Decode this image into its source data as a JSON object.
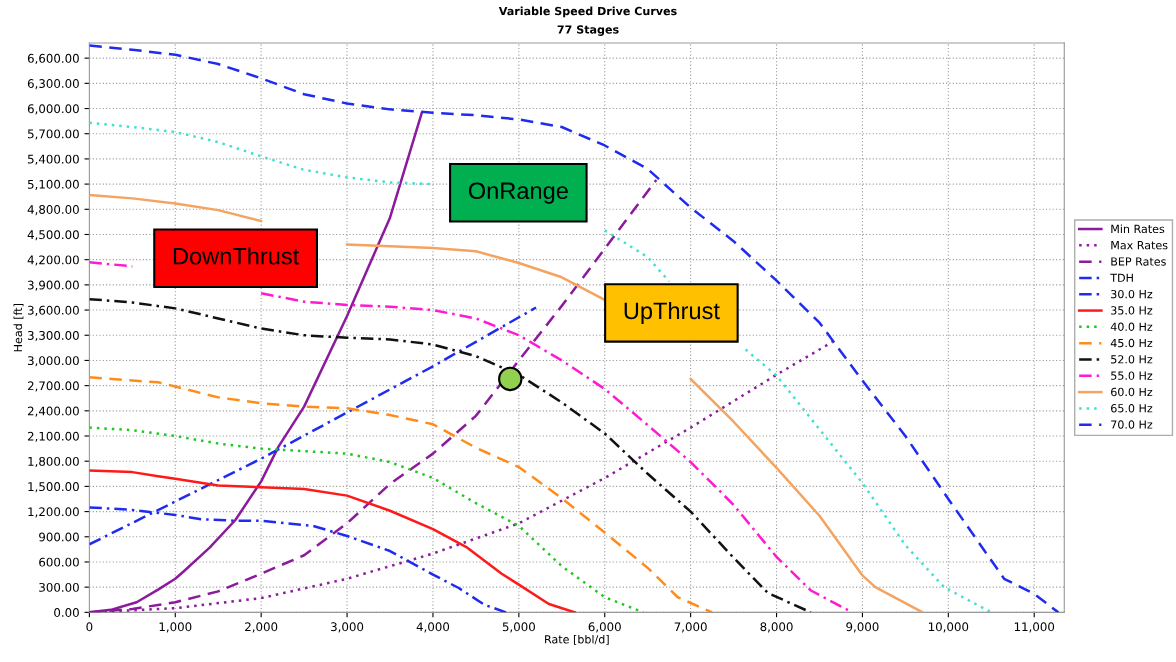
{
  "chart_data": {
    "type": "line",
    "title": "Variable Speed Drive Curves",
    "subtitle": "77 Stages",
    "xlabel": "Rate [bbl/d]",
    "ylabel": "Head [ft]",
    "xlim": [
      0,
      11350
    ],
    "ylim": [
      0,
      6780
    ],
    "xticks": [
      0,
      {
        "value": 1000,
        "label": "1,000"
      },
      {
        "value": 2000,
        "label": "2,000"
      },
      {
        "value": 3000,
        "label": "3,000"
      },
      {
        "value": 4000,
        "label": "4,000"
      },
      {
        "value": 5000,
        "label": "5,000"
      },
      {
        "value": 6000,
        "label": "6,000"
      },
      {
        "value": 7000,
        "label": "7,000"
      },
      {
        "value": 8000,
        "label": "8,000"
      },
      {
        "value": 9000,
        "label": "9,000"
      },
      {
        "value": 10000,
        "label": "10,000"
      },
      {
        "value": 11000,
        "label": "11,000"
      }
    ],
    "yticks": [
      {
        "value": 0,
        "label": "0.00"
      },
      {
        "value": 300,
        "label": "300.00"
      },
      {
        "value": 600,
        "label": "600.00"
      },
      {
        "value": 900,
        "label": "900.00"
      },
      {
        "value": 1200,
        "label": "1,200.00"
      },
      {
        "value": 1500,
        "label": "1,500.00"
      },
      {
        "value": 1800,
        "label": "1,800.00"
      },
      {
        "value": 2100,
        "label": "2,100.00"
      },
      {
        "value": 2400,
        "label": "2,400.00"
      },
      {
        "value": 2700,
        "label": "2,700.00"
      },
      {
        "value": 3000,
        "label": "3,000.00"
      },
      {
        "value": 3300,
        "label": "3,300.00"
      },
      {
        "value": 3600,
        "label": "3,600.00"
      },
      {
        "value": 3900,
        "label": "3,900.00"
      },
      {
        "value": 4200,
        "label": "4,200.00"
      },
      {
        "value": 4500,
        "label": "4,500.00"
      },
      {
        "value": 4800,
        "label": "4,800.00"
      },
      {
        "value": 5100,
        "label": "5,100.00"
      },
      {
        "value": 5400,
        "label": "5,400.00"
      },
      {
        "value": 5700,
        "label": "5,700.00"
      },
      {
        "value": 6000,
        "label": "6,000.00"
      },
      {
        "value": 6300,
        "label": "6,300.00"
      },
      {
        "value": 6600,
        "label": "6,600.00"
      }
    ],
    "grid": true,
    "legend": "right",
    "marker": "none",
    "annotations": [
      "DownThrust",
      "OnRange",
      "UpThrust"
    ],
    "series": [
      {
        "name": "Min Rates",
        "color": "#8b1a9c",
        "line_style": "solid",
        "x": [
          0,
          250,
          550,
          800,
          1000,
          1100,
          1400,
          1700,
          2000,
          2200,
          2500,
          3000,
          3500,
          3870
        ],
        "values": [
          0,
          30,
          120,
          270,
          400,
          490,
          770,
          1100,
          1560,
          1970,
          2450,
          3530,
          4700,
          5950
        ]
      },
      {
        "name": "Max Rates",
        "color": "#8b1a9c",
        "line_style": "dotted",
        "x": [
          0,
          1000,
          2000,
          3000,
          4000,
          5000,
          6000,
          7000,
          8000,
          8650
        ],
        "values": [
          0,
          50,
          170,
          400,
          700,
          1060,
          1600,
          2200,
          2830,
          3220
        ]
      },
      {
        "name": "BEP Rates",
        "color": "#8b1a9c",
        "line_style": "dashed",
        "x": [
          0,
          500,
          1000,
          1500,
          2000,
          2500,
          3000,
          3500,
          4000,
          4500,
          5000,
          5500,
          6000,
          6600
        ],
        "values": [
          0,
          40,
          120,
          250,
          460,
          680,
          1060,
          1530,
          1890,
          2340,
          3000,
          3650,
          4330,
          5150
        ]
      },
      {
        "name": "TDH",
        "color": "#1f2cf0",
        "line_style": "dashdot",
        "x": [
          0,
          2000,
          4000,
          5200
        ],
        "values": [
          810,
          1830,
          2930,
          3630
        ]
      },
      {
        "name": "30.0 Hz",
        "color": "#1f2cf0",
        "line_style": "dashdot",
        "x": [
          0,
          500,
          1000,
          1300,
          1700,
          2000,
          2600,
          3000,
          3500,
          4000,
          4300,
          4600,
          4850
        ],
        "values": [
          1250,
          1220,
          1160,
          1110,
          1090,
          1090,
          1030,
          910,
          730,
          450,
          290,
          90,
          0
        ]
      },
      {
        "name": "35.0 Hz",
        "color": "#ff1a1a",
        "line_style": "solid",
        "x": [
          0,
          500,
          800,
          1000,
          1500,
          2000,
          2500,
          3000,
          3500,
          4000,
          4400,
          4800,
          5000,
          5350,
          5650
        ],
        "values": [
          1690,
          1670,
          1620,
          1590,
          1510,
          1490,
          1470,
          1390,
          1210,
          990,
          770,
          460,
          330,
          100,
          0
        ]
      },
      {
        "name": "40.0 Hz",
        "color": "#1fc81f",
        "line_style": "dotted",
        "x": [
          0,
          500,
          1000,
          1500,
          2000,
          2500,
          3000,
          3500,
          4000,
          4500,
          5000,
          5500,
          6000,
          6450
        ],
        "values": [
          2200,
          2170,
          2100,
          2010,
          1950,
          1920,
          1890,
          1790,
          1600,
          1300,
          1030,
          550,
          180,
          0
        ]
      },
      {
        "name": "45.0 Hz",
        "color": "#ff8c1a",
        "line_style": "dashed",
        "x": [
          0,
          500,
          800,
          1000,
          1500,
          2000,
          2500,
          3000,
          3500,
          4000,
          4500,
          5000,
          5500,
          6000,
          6500,
          6850,
          7250
        ],
        "values": [
          2800,
          2760,
          2740,
          2690,
          2560,
          2490,
          2450,
          2430,
          2350,
          2240,
          1960,
          1730,
          1360,
          950,
          530,
          180,
          0
        ]
      },
      {
        "name": "52.0 Hz",
        "color": "#111111",
        "line_style": "dashdot",
        "x": [
          0,
          500,
          1000,
          1500,
          2000,
          2500,
          3000,
          3500,
          4000,
          4500,
          5000,
          5500,
          6000,
          6500,
          7000,
          7500,
          7900,
          8400
        ],
        "values": [
          3730,
          3690,
          3620,
          3500,
          3380,
          3300,
          3270,
          3250,
          3190,
          3050,
          2830,
          2500,
          2130,
          1650,
          1200,
          650,
          230,
          0
        ]
      },
      {
        "name": "55.0 Hz",
        "color": "#ff1ad1",
        "line_style": "dashdot",
        "x": [
          0,
          500,
          1000,
          1500,
          2000,
          2500,
          3000,
          3500,
          4000,
          4500,
          5000,
          5500,
          6000,
          6500,
          7000,
          7500,
          8000,
          8400,
          8880
        ],
        "values": [
          4170,
          4120,
          null,
          null,
          3800,
          3700,
          3660,
          3640,
          3600,
          3500,
          3300,
          3000,
          2660,
          2230,
          1790,
          1280,
          660,
          260,
          0
        ]
      },
      {
        "name": "60.0 Hz",
        "color": "#f4a460",
        "line_style": "solid",
        "x": [
          0,
          500,
          1000,
          1500,
          2000,
          2500,
          3000,
          3500,
          4000,
          4500,
          5000,
          5500,
          6000,
          6500,
          7000,
          7500,
          8000,
          8500,
          9000,
          9150,
          9700
        ],
        "values": [
          4970,
          4930,
          4870,
          4790,
          4660,
          null,
          4380,
          4360,
          4340,
          4300,
          4160,
          3990,
          3720,
          null,
          2780,
          2270,
          1720,
          1150,
          440,
          300,
          0
        ]
      },
      {
        "name": "65.0 Hz",
        "color": "#40e0d0",
        "line_style": "dotted",
        "x": [
          0,
          500,
          1000,
          1500,
          2000,
          2500,
          3000,
          3500,
          4000,
          4500,
          5000,
          5500,
          6000,
          6500,
          6750,
          7200,
          7640,
          8000,
          8500,
          9000,
          9500,
          9950,
          10500
        ],
        "values": [
          5830,
          5780,
          5720,
          5600,
          5430,
          5270,
          5180,
          5120,
          5100,
          null,
          null,
          null,
          4550,
          4230,
          3940,
          null,
          3130,
          2820,
          2180,
          1540,
          800,
          300,
          0
        ]
      },
      {
        "name": "70.0 Hz",
        "color": "#1f2cf0",
        "line_style": "dashed",
        "x": [
          0,
          500,
          1000,
          1500,
          2000,
          2500,
          3000,
          3500,
          4000,
          4500,
          5000,
          5500,
          6000,
          6500,
          7000,
          7500,
          8000,
          8500,
          9000,
          9500,
          10000,
          10650,
          11000,
          11280
        ],
        "values": [
          6750,
          6700,
          6640,
          6530,
          6360,
          6170,
          6060,
          5990,
          5950,
          5920,
          5870,
          5780,
          5560,
          5280,
          4820,
          4420,
          3950,
          3450,
          2760,
          2100,
          1350,
          400,
          220,
          0
        ]
      },
      {
        "type": "scatter",
        "marker": "circle",
        "color": "#92d050",
        "x": [
          4900
        ],
        "values": [
          2780
        ]
      }
    ]
  }
}
